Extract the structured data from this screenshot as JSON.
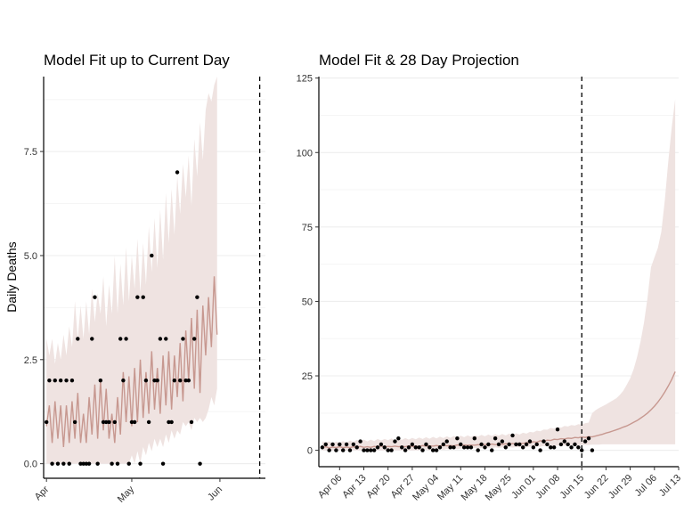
{
  "chart_data": [
    {
      "type": "line",
      "title": "Model Fit up to Current Day",
      "ylabel": "Daily Deaths",
      "xlabel": "",
      "x_start": "2020-03-31",
      "x_end": "2020-06-17",
      "current_day": "2020-06-15",
      "ylim": [
        -0.35,
        9.3
      ],
      "yticks": [
        0.0,
        2.5,
        5.0,
        7.5
      ],
      "ytick_labels": [
        "0.0",
        "2.5",
        "5.0",
        "7.5"
      ],
      "xticks": [
        "2020-04-01",
        "2020-05-01",
        "2020-06-01"
      ],
      "xtick_labels": [
        "Apr",
        "May",
        "Jun"
      ],
      "colors": {
        "ribbon": "#efe3e1",
        "line": "#c79890",
        "points": "#000000",
        "vline": "#000000"
      },
      "series": [
        {
          "kind": "observed",
          "values": [
            1,
            2,
            0,
            2,
            0,
            2,
            0,
            2,
            0,
            2,
            1,
            3,
            0,
            0,
            0,
            0,
            3,
            4,
            0,
            2,
            1,
            1,
            1,
            0,
            1,
            0,
            3,
            2,
            3,
            0,
            1,
            1,
            4,
            0,
            4,
            2,
            1,
            5,
            2,
            2,
            3,
            0,
            3,
            1,
            1,
            2,
            7,
            2,
            3,
            2,
            2,
            1,
            3,
            4,
            0
          ]
        },
        {
          "kind": "model_mean",
          "values": [
            0.9,
            1.4,
            0.5,
            1.5,
            0.6,
            1.4,
            0.4,
            1.4,
            0.5,
            1.5,
            0.6,
            1.7,
            0.5,
            1.2,
            0.5,
            1.6,
            0.7,
            1.9,
            0.6,
            2.0,
            0.8,
            1.8,
            0.6,
            1.2,
            0.5,
            1.6,
            0.7,
            2.2,
            1.0,
            2.1,
            0.9,
            2.3,
            1.0,
            2.5,
            1.1,
            2.2,
            1.2,
            2.7,
            1.3,
            2.3,
            1.2,
            2.6,
            1.4,
            2.7,
            1.3,
            2.6,
            1.6,
            2.9,
            1.5,
            3.2,
            2.0,
            3.5,
            1.8,
            3.7,
            1.7,
            3.8,
            2.6,
            4.0,
            2.8,
            4.5,
            3.1
          ]
        },
        {
          "kind": "ribbon_upper",
          "values": [
            3.0,
            2.6,
            3.0,
            2.4,
            2.9,
            2.5,
            3.1,
            2.6,
            3.3,
            2.8,
            3.9,
            3.0,
            3.8,
            3.0,
            3.9,
            3.1,
            4.2,
            3.4,
            4.1,
            3.6,
            4.5,
            3.3,
            4.3,
            3.6,
            5.0,
            3.6,
            4.8,
            3.8,
            5.2,
            3.9,
            5.0,
            4.2,
            5.4,
            4.1,
            5.3,
            4.3,
            5.7,
            4.6,
            5.9,
            4.7,
            6.1,
            4.9,
            6.5,
            5.3,
            6.6,
            5.5,
            6.9,
            6.0,
            7.2,
            6.4,
            7.4,
            6.2,
            7.8,
            6.9,
            8.2,
            7.3,
            8.5,
            8.9,
            8.7,
            9.1,
            9.3
          ]
        },
        {
          "kind": "ribbon_lower",
          "values": [
            0,
            0,
            0,
            0,
            0,
            0,
            0,
            0,
            0,
            0,
            0,
            0,
            0,
            0,
            0,
            0,
            0,
            0,
            0,
            0,
            0,
            0,
            0,
            0,
            0,
            0,
            0,
            0,
            0,
            0,
            0.2,
            0,
            0.3,
            0,
            0.4,
            0.2,
            0.5,
            0.3,
            0.6,
            0.4,
            0.6,
            0.4,
            0.7,
            0.5,
            0.8,
            0.6,
            0.8,
            0.7,
            1.0,
            0.9,
            1.0,
            0.8,
            1.1,
            1.0,
            1.1,
            1.0,
            1.1,
            1.3,
            1.6,
            1.4,
            1.8
          ]
        }
      ]
    },
    {
      "type": "line",
      "title": "Model Fit & 28 Day Projection",
      "ylabel": "",
      "xlabel": "",
      "x_start": "2020-03-31",
      "x_end": "2020-07-13",
      "current_day": "2020-06-15",
      "ylim": [
        -5.5,
        125.5
      ],
      "yticks": [
        0,
        25,
        50,
        75,
        100,
        125
      ],
      "ytick_labels": [
        "0",
        "25",
        "50",
        "75",
        "100",
        "125"
      ],
      "xticks": [
        "2020-04-06",
        "2020-04-13",
        "2020-04-20",
        "2020-04-27",
        "2020-05-04",
        "2020-05-11",
        "2020-05-18",
        "2020-05-25",
        "2020-06-01",
        "2020-06-08",
        "2020-06-15",
        "2020-06-22",
        "2020-06-29",
        "2020-07-06",
        "2020-07-13"
      ],
      "xtick_labels": [
        "Apr 06",
        "Apr 13",
        "Apr 20",
        "Apr 27",
        "May 04",
        "May 11",
        "May 18",
        "May 25",
        "Jun 01",
        "Jun 08",
        "Jun 15",
        "Jun 22",
        "Jun 29",
        "Jul 06",
        "Jul 13"
      ],
      "colors": {
        "ribbon": "#efe3e1",
        "line": "#c79890",
        "points": "#000000",
        "vline": "#000000"
      },
      "series": [
        {
          "kind": "observed",
          "values": [
            1,
            2,
            0,
            2,
            0,
            2,
            0,
            2,
            0,
            2,
            1,
            3,
            0,
            0,
            0,
            0,
            1,
            2,
            1,
            0,
            0,
            3,
            4,
            1,
            0,
            1,
            2,
            1,
            1,
            0,
            2,
            1,
            0,
            0,
            1,
            2,
            3,
            1,
            1,
            4,
            2,
            1,
            1,
            1,
            4,
            0,
            2,
            1,
            2,
            0,
            4,
            2,
            3,
            1,
            2,
            5,
            2,
            2,
            1,
            2,
            3,
            1,
            2,
            0,
            3,
            2,
            1,
            1,
            7,
            2,
            3,
            2,
            1,
            2,
            1,
            0,
            3,
            4,
            0
          ]
        },
        {
          "kind": "model_mean",
          "values": [
            0.9,
            1.2,
            0.8,
            1.1,
            0.9,
            1.2,
            0.9,
            1.1,
            0.9,
            1.2,
            1.0,
            1.3,
            1.0,
            1.2,
            1.0,
            1.3,
            1.1,
            1.4,
            1.1,
            1.3,
            1.2,
            1.4,
            1.2,
            1.3,
            1.2,
            1.5,
            1.3,
            1.4,
            1.3,
            1.6,
            1.4,
            1.5,
            1.4,
            1.6,
            1.4,
            1.7,
            1.5,
            1.6,
            1.5,
            1.8,
            1.6,
            1.8,
            1.7,
            1.8,
            1.7,
            1.9,
            1.8,
            2.0,
            1.8,
            2.1,
            1.9,
            2.1,
            2.0,
            2.2,
            2.1,
            2.3,
            2.1,
            2.4,
            2.3,
            2.6,
            2.5,
            2.9,
            2.7,
            3.2,
            3.0,
            3.4,
            3.3,
            3.7,
            3.6,
            3.9,
            3.8,
            4.1,
            4.0,
            4.3,
            4.2,
            4.5,
            4.3,
            4.6,
            4.5,
            4.8,
            5.1,
            5.4,
            5.8,
            6.1,
            6.5,
            6.9,
            7.3,
            7.8,
            8.2,
            8.8,
            9.4,
            10.0,
            10.8,
            11.6,
            12.5,
            13.6,
            14.8,
            16.2,
            17.8,
            19.6,
            21.6,
            23.8,
            26.4
          ]
        },
        {
          "kind": "ribbon_upper",
          "values": [
            3.0,
            2.6,
            3.0,
            2.4,
            2.9,
            2.5,
            3.1,
            2.6,
            3.3,
            2.8,
            3.5,
            3.0,
            3.6,
            3.0,
            3.6,
            3.1,
            3.8,
            3.3,
            3.8,
            3.4,
            4.0,
            3.3,
            3.9,
            3.5,
            4.1,
            3.6,
            4.2,
            3.7,
            4.3,
            3.8,
            4.4,
            3.9,
            4.5,
            4.0,
            4.6,
            4.1,
            4.7,
            4.2,
            4.8,
            4.3,
            4.9,
            4.4,
            5.0,
            4.5,
            5.1,
            4.6,
            5.2,
            4.7,
            5.3,
            4.8,
            5.4,
            4.9,
            5.5,
            5.0,
            5.6,
            5.1,
            5.7,
            5.3,
            5.9,
            5.6,
            6.2,
            6.0,
            6.6,
            6.4,
            7.0,
            6.9,
            7.5,
            7.3,
            7.9,
            7.6,
            8.2,
            8.0,
            8.5,
            8.3,
            8.8,
            8.6,
            9.1,
            9.3,
            12.5,
            13.5,
            14.2,
            14.8,
            15.4,
            16.1,
            16.8,
            17.5,
            18.6,
            20.0,
            22.0,
            24.2,
            27.3,
            31.4,
            36.6,
            43.0,
            51.2,
            61.5,
            64.8,
            68.0,
            73.5,
            84.0,
            97.0,
            108.5,
            118.0
          ]
        },
        {
          "kind": "ribbon_lower",
          "values": [
            0,
            0,
            0,
            0,
            0,
            0,
            0,
            0,
            0,
            0,
            0,
            0,
            0,
            0,
            0,
            0,
            0,
            0,
            0,
            0,
            0,
            0,
            0,
            0,
            0,
            0,
            0,
            0,
            0,
            0,
            0.2,
            0,
            0.3,
            0,
            0.4,
            0.2,
            0.5,
            0.3,
            0.6,
            0.4,
            0.6,
            0.4,
            0.7,
            0.5,
            0.8,
            0.6,
            0.8,
            0.7,
            0.9,
            0.7,
            1.0,
            0.8,
            1.0,
            0.9,
            1.1,
            0.9,
            1.1,
            1.0,
            1.2,
            1.0,
            1.3,
            1.1,
            1.4,
            1.2,
            1.5,
            1.3,
            1.5,
            1.4,
            1.6,
            1.5,
            1.6,
            1.6,
            1.7,
            1.7,
            1.7,
            1.8,
            1.8,
            1.8,
            1.9,
            1.9,
            1.9,
            2.0,
            2.0,
            2.0,
            2.0,
            2.0,
            2.0,
            2.0,
            2.0,
            2.0,
            2.0,
            2.0,
            2.0,
            2.0,
            2.0,
            2.0,
            2.0,
            2.0,
            2.0,
            2.0,
            2.0,
            2.0,
            2.0
          ]
        }
      ]
    }
  ]
}
